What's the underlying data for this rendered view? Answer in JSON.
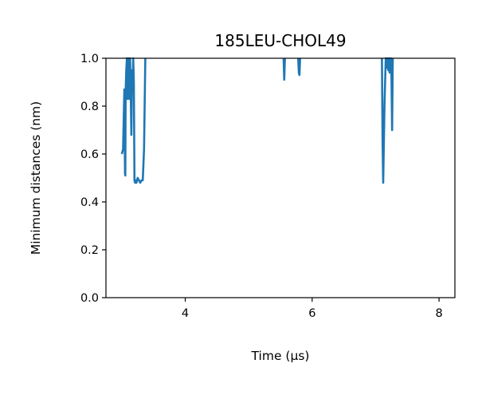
{
  "chart_data": {
    "type": "line",
    "title": "185LEU-CHOL49",
    "xlabel": "Time (μs)",
    "ylabel": "Minimum distances (nm)",
    "xlim": [
      2.75,
      8.25
    ],
    "ylim": [
      0.0,
      1.0
    ],
    "x_ticks": [
      4,
      6,
      8
    ],
    "y_ticks": [
      0.0,
      0.2,
      0.4,
      0.6,
      0.8,
      1.0
    ],
    "grid": false,
    "color": "#1f77b4",
    "segments": [
      {
        "x": [
          3.0,
          3.02,
          3.04,
          3.05,
          3.055,
          3.06,
          3.07,
          3.08,
          3.09,
          3.1,
          3.11,
          3.12,
          3.13,
          3.14,
          3.15,
          3.16,
          3.17,
          3.18,
          3.19,
          3.2,
          3.21,
          3.22,
          3.23,
          3.25,
          3.27,
          3.29,
          3.31,
          3.33,
          3.35,
          3.37
        ],
        "y": [
          0.6,
          0.62,
          0.87,
          0.52,
          0.51,
          0.86,
          0.95,
          1.0,
          0.83,
          0.98,
          1.0,
          0.83,
          1.0,
          0.86,
          0.68,
          0.95,
          0.86,
          1.0,
          0.9,
          0.49,
          0.48,
          0.49,
          0.48,
          0.5,
          0.49,
          0.48,
          0.49,
          0.49,
          0.62,
          1.0
        ]
      },
      {
        "x": [
          5.55,
          5.56,
          5.57
        ],
        "y": [
          1.0,
          0.91,
          1.0
        ]
      },
      {
        "x": [
          5.78,
          5.79,
          5.8,
          5.81
        ],
        "y": [
          1.0,
          0.94,
          0.93,
          1.0
        ]
      },
      {
        "x": [
          7.1,
          7.11,
          7.12,
          7.14,
          7.16,
          7.18,
          7.19,
          7.2,
          7.21,
          7.22,
          7.24,
          7.25,
          7.26,
          7.27
        ],
        "y": [
          1.0,
          0.66,
          0.48,
          0.8,
          1.0,
          0.96,
          1.0,
          0.95,
          1.0,
          0.94,
          1.0,
          0.92,
          0.7,
          1.0
        ]
      }
    ]
  }
}
